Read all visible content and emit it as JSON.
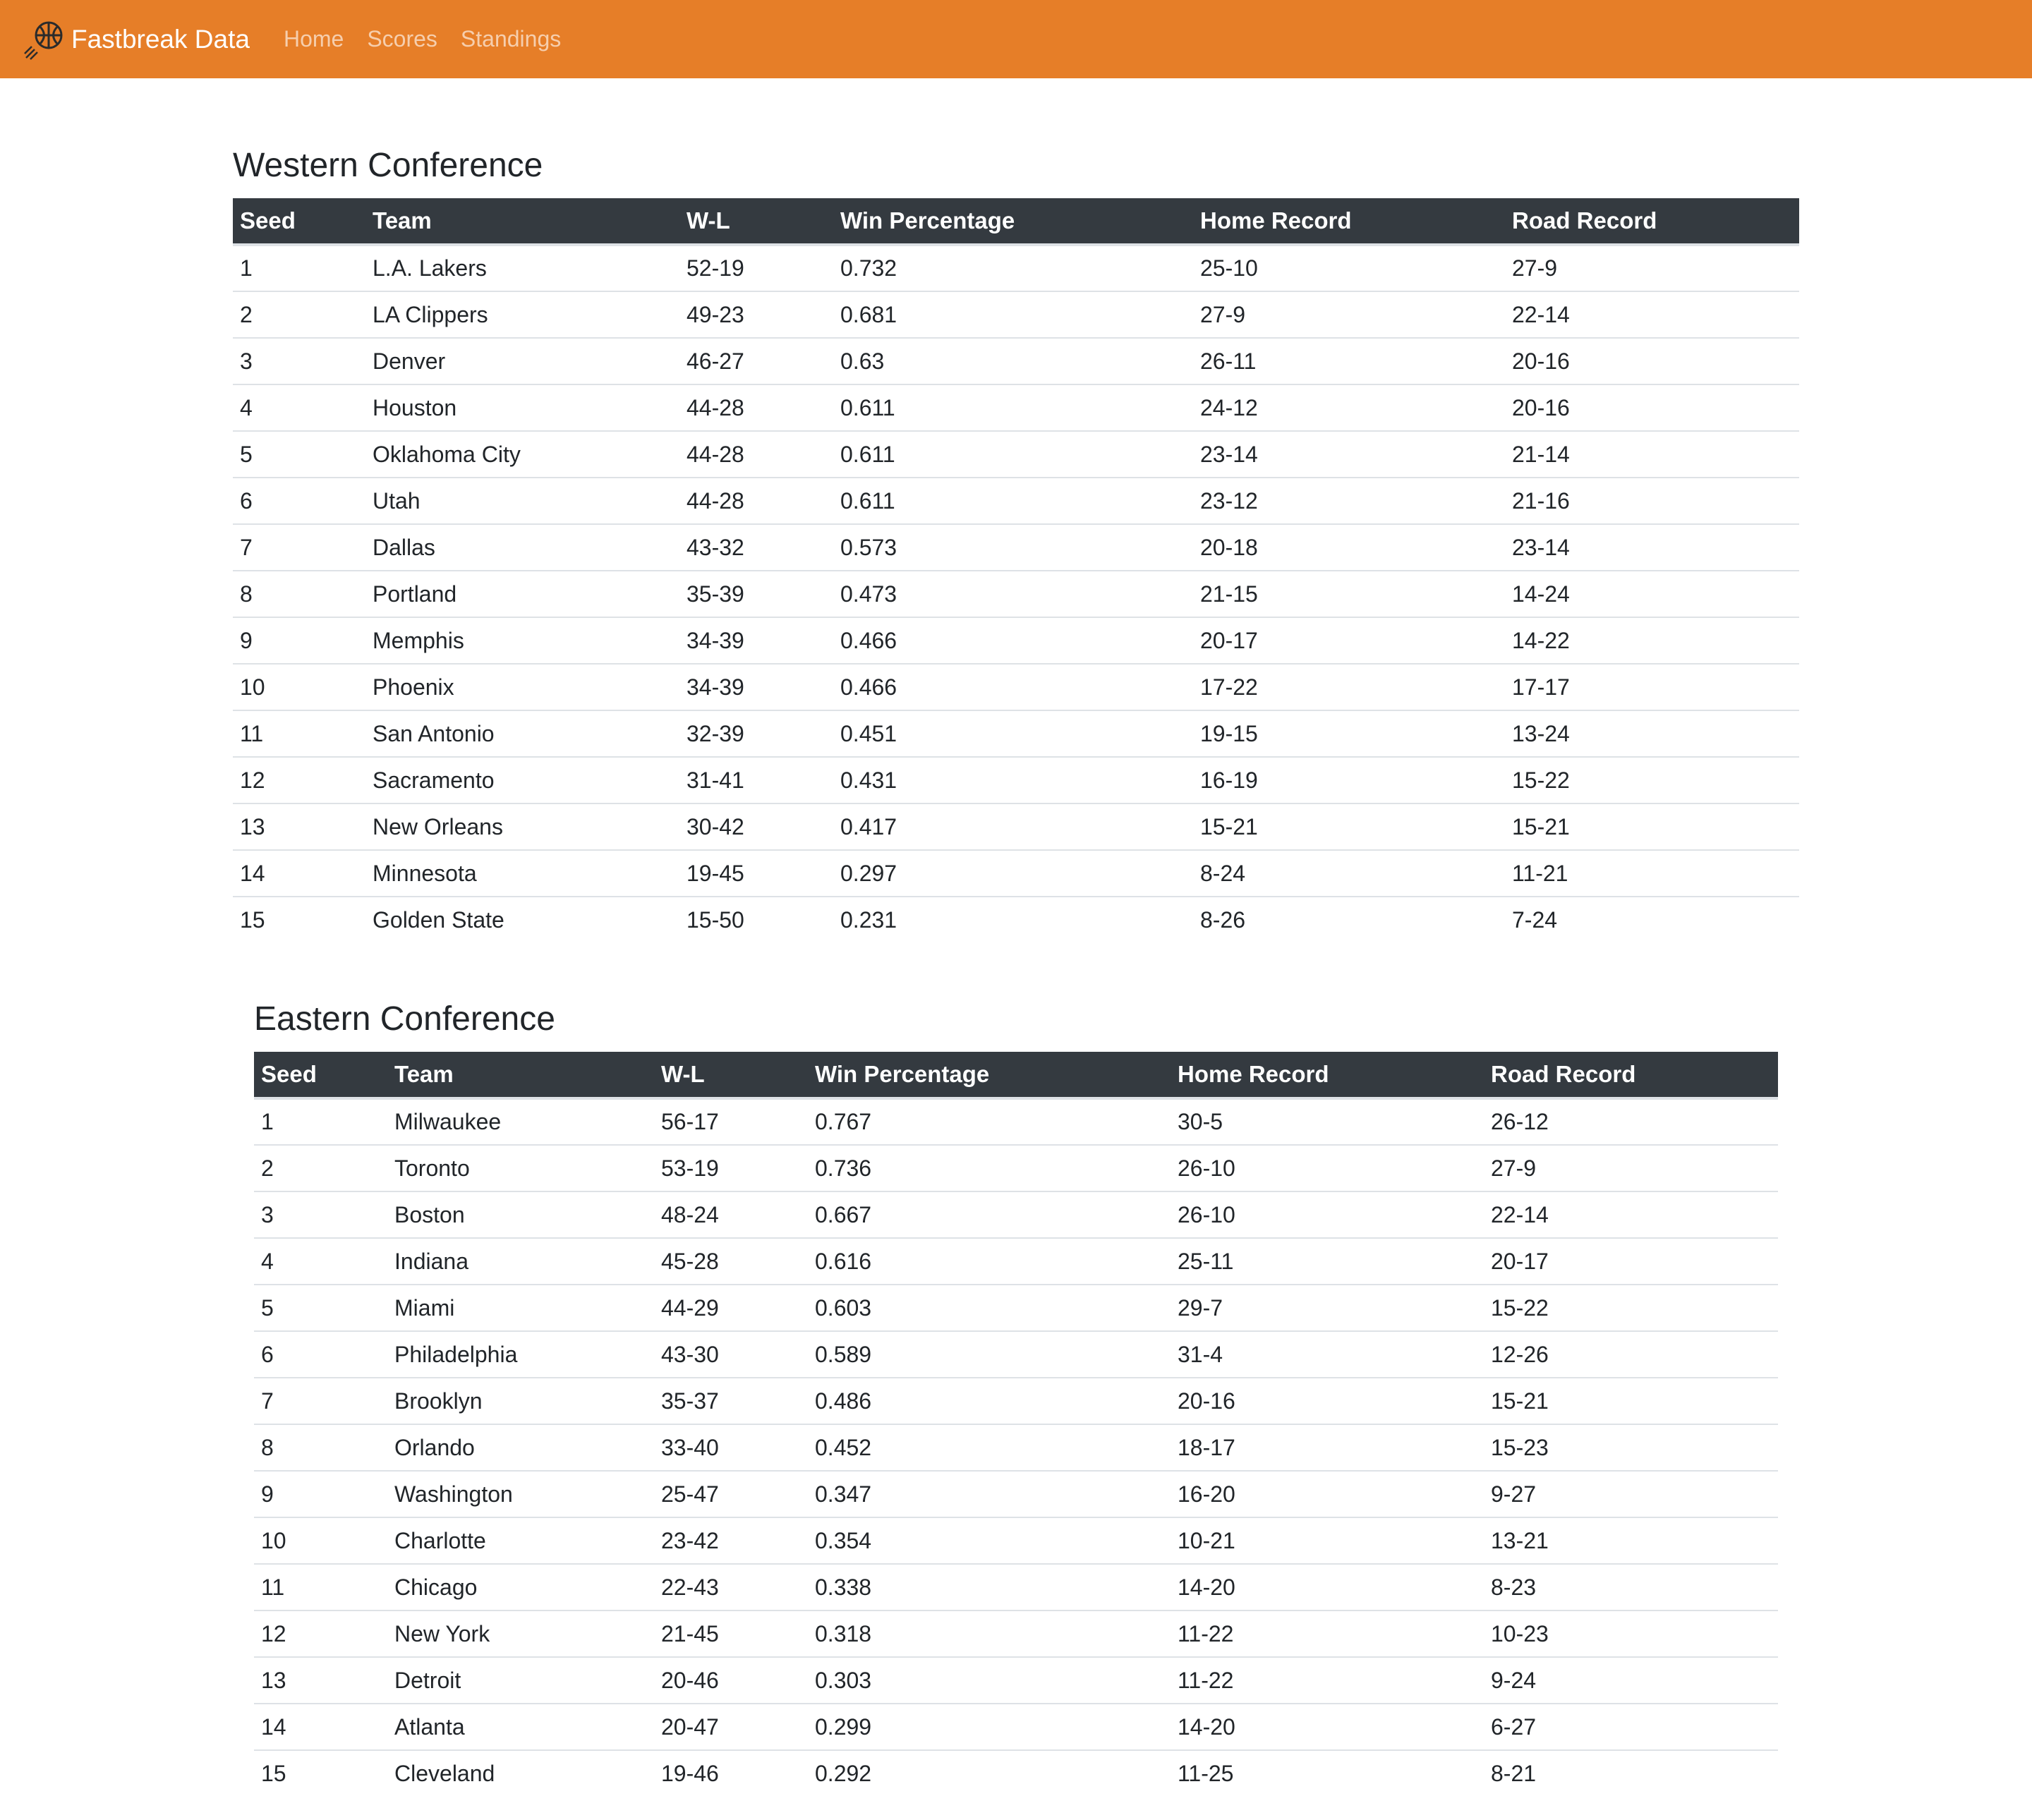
{
  "navbar": {
    "brand": "Fastbreak Data",
    "brand_icon": "basketball-icon",
    "links": [
      "Home",
      "Scores",
      "Standings"
    ],
    "background": "#e67e28"
  },
  "columns": [
    "Seed",
    "Team",
    "W-L",
    "Win Percentage",
    "Home Record",
    "Road Record"
  ],
  "western": {
    "title": "Western Conference",
    "rows": [
      [
        "1",
        "L.A. Lakers",
        "52-19",
        "0.732",
        "25-10",
        "27-9"
      ],
      [
        "2",
        "LA Clippers",
        "49-23",
        "0.681",
        "27-9",
        "22-14"
      ],
      [
        "3",
        "Denver",
        "46-27",
        "0.63",
        "26-11",
        "20-16"
      ],
      [
        "4",
        "Houston",
        "44-28",
        "0.611",
        "24-12",
        "20-16"
      ],
      [
        "5",
        "Oklahoma City",
        "44-28",
        "0.611",
        "23-14",
        "21-14"
      ],
      [
        "6",
        "Utah",
        "44-28",
        "0.611",
        "23-12",
        "21-16"
      ],
      [
        "7",
        "Dallas",
        "43-32",
        "0.573",
        "20-18",
        "23-14"
      ],
      [
        "8",
        "Portland",
        "35-39",
        "0.473",
        "21-15",
        "14-24"
      ],
      [
        "9",
        "Memphis",
        "34-39",
        "0.466",
        "20-17",
        "14-22"
      ],
      [
        "10",
        "Phoenix",
        "34-39",
        "0.466",
        "17-22",
        "17-17"
      ],
      [
        "11",
        "San Antonio",
        "32-39",
        "0.451",
        "19-15",
        "13-24"
      ],
      [
        "12",
        "Sacramento",
        "31-41",
        "0.431",
        "16-19",
        "15-22"
      ],
      [
        "13",
        "New Orleans",
        "30-42",
        "0.417",
        "15-21",
        "15-21"
      ],
      [
        "14",
        "Minnesota",
        "19-45",
        "0.297",
        "8-24",
        "11-21"
      ],
      [
        "15",
        "Golden State",
        "15-50",
        "0.231",
        "8-26",
        "7-24"
      ]
    ]
  },
  "eastern": {
    "title": "Eastern Conference",
    "rows": [
      [
        "1",
        "Milwaukee",
        "56-17",
        "0.767",
        "30-5",
        "26-12"
      ],
      [
        "2",
        "Toronto",
        "53-19",
        "0.736",
        "26-10",
        "27-9"
      ],
      [
        "3",
        "Boston",
        "48-24",
        "0.667",
        "26-10",
        "22-14"
      ],
      [
        "4",
        "Indiana",
        "45-28",
        "0.616",
        "25-11",
        "20-17"
      ],
      [
        "5",
        "Miami",
        "44-29",
        "0.603",
        "29-7",
        "15-22"
      ],
      [
        "6",
        "Philadelphia",
        "43-30",
        "0.589",
        "31-4",
        "12-26"
      ],
      [
        "7",
        "Brooklyn",
        "35-37",
        "0.486",
        "20-16",
        "15-21"
      ],
      [
        "8",
        "Orlando",
        "33-40",
        "0.452",
        "18-17",
        "15-23"
      ],
      [
        "9",
        "Washington",
        "25-47",
        "0.347",
        "16-20",
        "9-27"
      ],
      [
        "10",
        "Charlotte",
        "23-42",
        "0.354",
        "10-21",
        "13-21"
      ],
      [
        "11",
        "Chicago",
        "22-43",
        "0.338",
        "14-20",
        "8-23"
      ],
      [
        "12",
        "New York",
        "21-45",
        "0.318",
        "11-22",
        "10-23"
      ],
      [
        "13",
        "Detroit",
        "20-46",
        "0.303",
        "11-22",
        "9-24"
      ],
      [
        "14",
        "Atlanta",
        "20-47",
        "0.299",
        "14-20",
        "6-27"
      ],
      [
        "15",
        "Cleveland",
        "19-46",
        "0.292",
        "11-25",
        "8-21"
      ]
    ]
  }
}
